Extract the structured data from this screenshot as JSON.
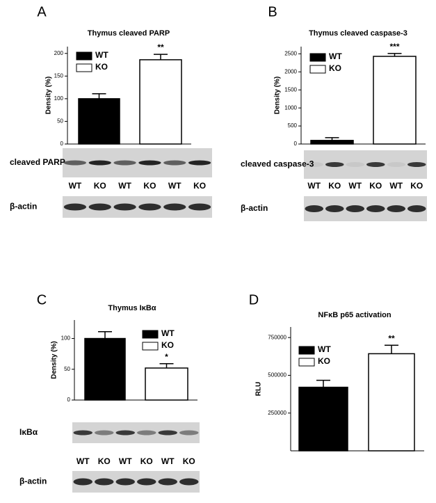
{
  "chart_data": [
    {
      "type": "bar",
      "panel": "A",
      "title": "Thymus cleaved PARP",
      "ylabel": "Density (%)",
      "ylim": [
        0,
        215
      ],
      "yticks": [
        0,
        50,
        100,
        150,
        200
      ],
      "series": [
        {
          "name": "WT",
          "color": "#000000",
          "values": [
            100
          ],
          "errors": [
            11
          ]
        },
        {
          "name": "KO",
          "color": "#ffffff",
          "values": [
            186
          ],
          "errors": [
            12
          ],
          "annotation": "**"
        }
      ],
      "blots": [
        {
          "label": "cleaved PARP",
          "lanes": [
            "WT",
            "KO",
            "WT",
            "KO",
            "WT",
            "KO"
          ]
        },
        {
          "label": "β-actin"
        }
      ]
    },
    {
      "type": "bar",
      "panel": "B",
      "title": "Thymus cleaved caspase-3",
      "ylabel": "Density (%)",
      "ylim": [
        0,
        2700
      ],
      "yticks": [
        0,
        500,
        1000,
        1500,
        2000,
        2500
      ],
      "series": [
        {
          "name": "WT",
          "color": "#000000",
          "values": [
            100
          ],
          "errors": [
            75
          ]
        },
        {
          "name": "KO",
          "color": "#ffffff",
          "values": [
            2430
          ],
          "errors": [
            80
          ],
          "annotation": "***"
        }
      ],
      "blots": [
        {
          "label": "cleaved caspase-3",
          "lanes": [
            "WT",
            "KO",
            "WT",
            "KO",
            "WT",
            "KO"
          ]
        },
        {
          "label": "β-actin"
        }
      ]
    },
    {
      "type": "bar",
      "panel": "C",
      "title": "Thymus IκBα",
      "ylabel": "Density (%)",
      "ylim": [
        0,
        130
      ],
      "yticks": [
        0,
        50,
        100
      ],
      "series": [
        {
          "name": "WT",
          "color": "#000000",
          "values": [
            100
          ],
          "errors": [
            11
          ]
        },
        {
          "name": "KO",
          "color": "#ffffff",
          "values": [
            52
          ],
          "errors": [
            7
          ],
          "annotation": "*"
        }
      ],
      "blots": [
        {
          "label": "IκBα",
          "lanes": [
            "WT",
            "KO",
            "WT",
            "KO",
            "WT",
            "KO"
          ]
        },
        {
          "label": "β-actin"
        }
      ]
    },
    {
      "type": "bar",
      "panel": "D",
      "title": "NFκB p65 activation",
      "ylabel": "RLU",
      "ylim": [
        0,
        820000
      ],
      "yticks": [
        250000,
        500000,
        750000
      ],
      "series": [
        {
          "name": "WT",
          "color": "#000000",
          "values": [
            421000
          ],
          "errors": [
            46000
          ]
        },
        {
          "name": "KO",
          "color": "#ffffff",
          "values": [
            643000
          ],
          "errors": [
            56000
          ],
          "annotation": "**"
        }
      ]
    }
  ]
}
